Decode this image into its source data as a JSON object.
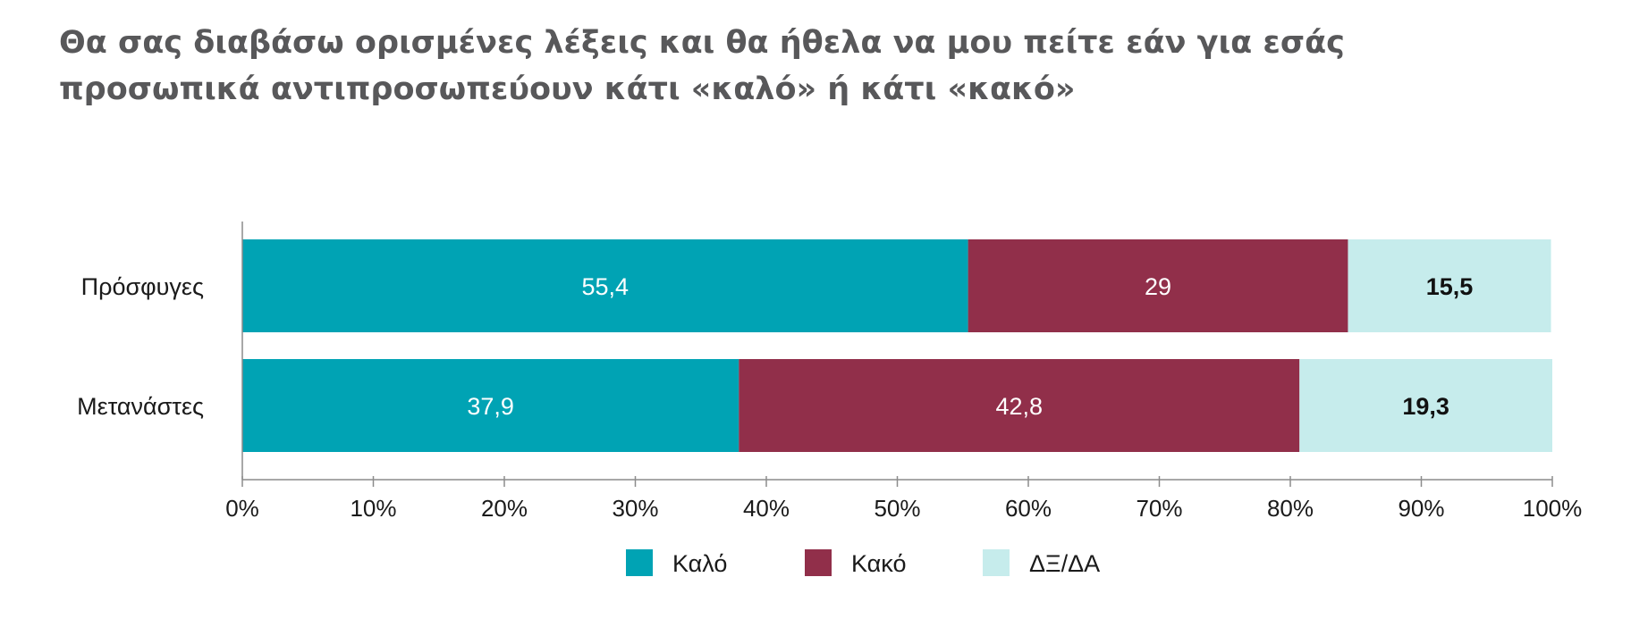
{
  "title_lines": [
    "Θα σας διαβάσω ορισμένες λέξεις και θα ήθελα να μου πείτε εάν για εσάς",
    "προσωπικά αντιπροσωπεύουν κάτι «καλό» ή κάτι «κακό»"
  ],
  "chart_data": {
    "type": "bar",
    "orientation": "horizontal",
    "stacked": true,
    "title": "Θα σας διαβάσω ορισμένες λέξεις και θα ήθελα να μου πείτε εάν για εσάς προσωπικά αντιπροσωπεύουν κάτι «καλό» ή κάτι «κακό»",
    "categories": [
      "Πρόσφυγες",
      "Μετανάστες"
    ],
    "series": [
      {
        "name": "Καλό",
        "values": [
          55.4,
          37.9
        ],
        "labels": [
          "55,4",
          "37,9"
        ],
        "color": "#00a3b4",
        "label_color": "#ffffff"
      },
      {
        "name": "Κακό",
        "values": [
          29,
          42.8
        ],
        "labels": [
          "29",
          "42,8"
        ],
        "color": "#912f4a",
        "label_color": "#ffffff"
      },
      {
        "name": "ΔΞ/ΔΑ",
        "values": [
          15.5,
          19.3
        ],
        "labels": [
          "15,5",
          "19,3"
        ],
        "color": "#c6ecec",
        "label_color": "#111111"
      }
    ],
    "x_ticks": [
      "0%",
      "10%",
      "20%",
      "30%",
      "40%",
      "50%",
      "60%",
      "70%",
      "80%",
      "90%",
      "100%"
    ],
    "xlim": [
      0,
      100
    ],
    "grid": false,
    "legend_position": "bottom-center"
  }
}
